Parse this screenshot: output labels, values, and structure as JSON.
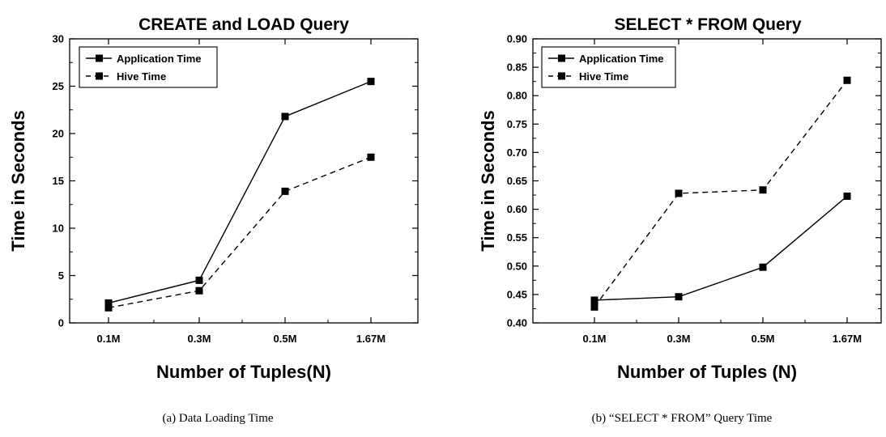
{
  "chart_data": [
    {
      "type": "line",
      "title": "CREATE and LOAD Query",
      "xlabel": "Number of Tuples(N)",
      "ylabel": "Time in Seconds",
      "categories": [
        "0.1M",
        "0.3M",
        "0.5M",
        "1.67M"
      ],
      "ylim": [
        0,
        30
      ],
      "yticks": [
        "0",
        "5",
        "10",
        "15",
        "20",
        "25",
        "30"
      ],
      "legend_position": "top-left",
      "grid": false,
      "series": [
        {
          "name": "Application Time",
          "values": [
            2.1,
            4.5,
            21.8,
            25.5
          ],
          "style": "solid"
        },
        {
          "name": "Hive Time",
          "values": [
            1.6,
            3.4,
            13.9,
            17.5
          ],
          "style": "dashed"
        }
      ],
      "caption": "(a) Data Loading Time"
    },
    {
      "type": "line",
      "title": "SELECT * FROM Query",
      "xlabel": "Number of Tuples (N)",
      "ylabel": "Time in Seconds",
      "categories": [
        "0.1M",
        "0.3M",
        "0.5M",
        "1.67M"
      ],
      "ylim": [
        0.4,
        0.9
      ],
      "yticks": [
        "0.40",
        "0.45",
        "0.50",
        "0.55",
        "0.60",
        "0.65",
        "0.70",
        "0.75",
        "0.80",
        "0.85",
        "0.90"
      ],
      "legend_position": "top-left",
      "grid": false,
      "series": [
        {
          "name": "Application Time",
          "values": [
            0.44,
            0.446,
            0.498,
            0.623
          ],
          "style": "solid"
        },
        {
          "name": "Hive Time",
          "values": [
            0.428,
            0.628,
            0.634,
            0.827
          ],
          "style": "dashed"
        }
      ],
      "caption": "(b) “SELECT * FROM” Query Time"
    }
  ]
}
